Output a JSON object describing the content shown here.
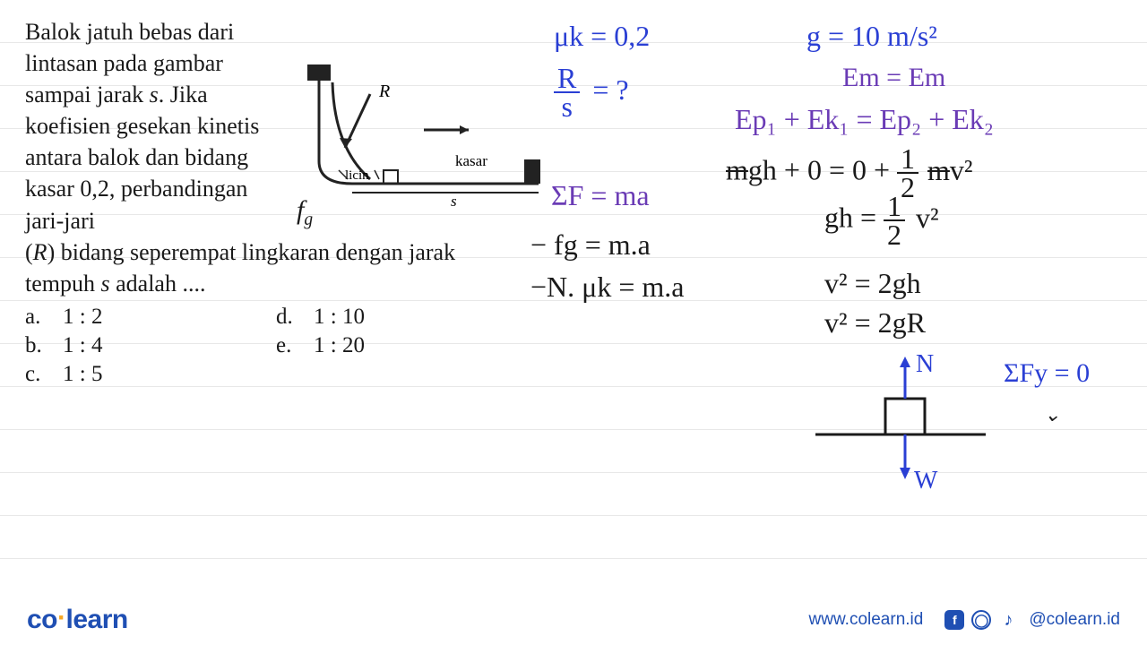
{
  "problem": {
    "text_wrap": "Balok jatuh bebas dari lintasan pada gambar sampai jarak <i>s</i>. Jika koefisien gesekan kinetis antara balok dan bidang kasar 0,2, perbandingan jari-jari",
    "text_full": "(<i>R</i>) bidang seperempat lingkaran dengan jarak tempuh <i>s</i> adalah ....",
    "options": [
      {
        "label": "a.",
        "value": "1 : 2"
      },
      {
        "label": "b.",
        "value": "1 : 4"
      },
      {
        "label": "c.",
        "value": "1 : 5"
      },
      {
        "label": "d.",
        "value": "1 : 10"
      },
      {
        "label": "e.",
        "value": "1 : 20"
      }
    ]
  },
  "diagram": {
    "label_R": "R",
    "label_licin": "licin",
    "label_kasar": "kasar",
    "label_s": "s",
    "annot_fg": "f",
    "annot_fg_sub": "g"
  },
  "work": {
    "l1": "μk = 0,2",
    "l2": "g = 10 m/s²",
    "l3_num": "R",
    "l3_den": "s",
    "l3_rhs": "= ?",
    "l4": "Em = Em",
    "l5": "Ep₁ + Ek₁  =  Ep₂ + Ek₂",
    "l6a": "m",
    "l6b": "gh + 0 = 0 + ",
    "l6c_num": "1",
    "l6c_den": "2",
    "l6d": "m",
    "l6e": "v²",
    "l7": "ΣF = ma",
    "l8a": "gh = ",
    "l8b_num": "1",
    "l8b_den": "2",
    "l8c": "v²",
    "l9": "− fg  = m.a",
    "l10": "v² = 2gh",
    "l11": "−N. μk = m.a",
    "l12": "v² = 2gR",
    "l13": "N",
    "l14": "ΣFy = 0",
    "l15": "W"
  },
  "footer": {
    "brand_a": "co",
    "brand_b": "learn",
    "url": "www.colearn.id",
    "handle": "@colearn.id"
  },
  "style": {
    "blue": "#2a3fd4",
    "purple": "#6a3bb5",
    "black": "#1a1a1a",
    "hw_size": 30
  }
}
